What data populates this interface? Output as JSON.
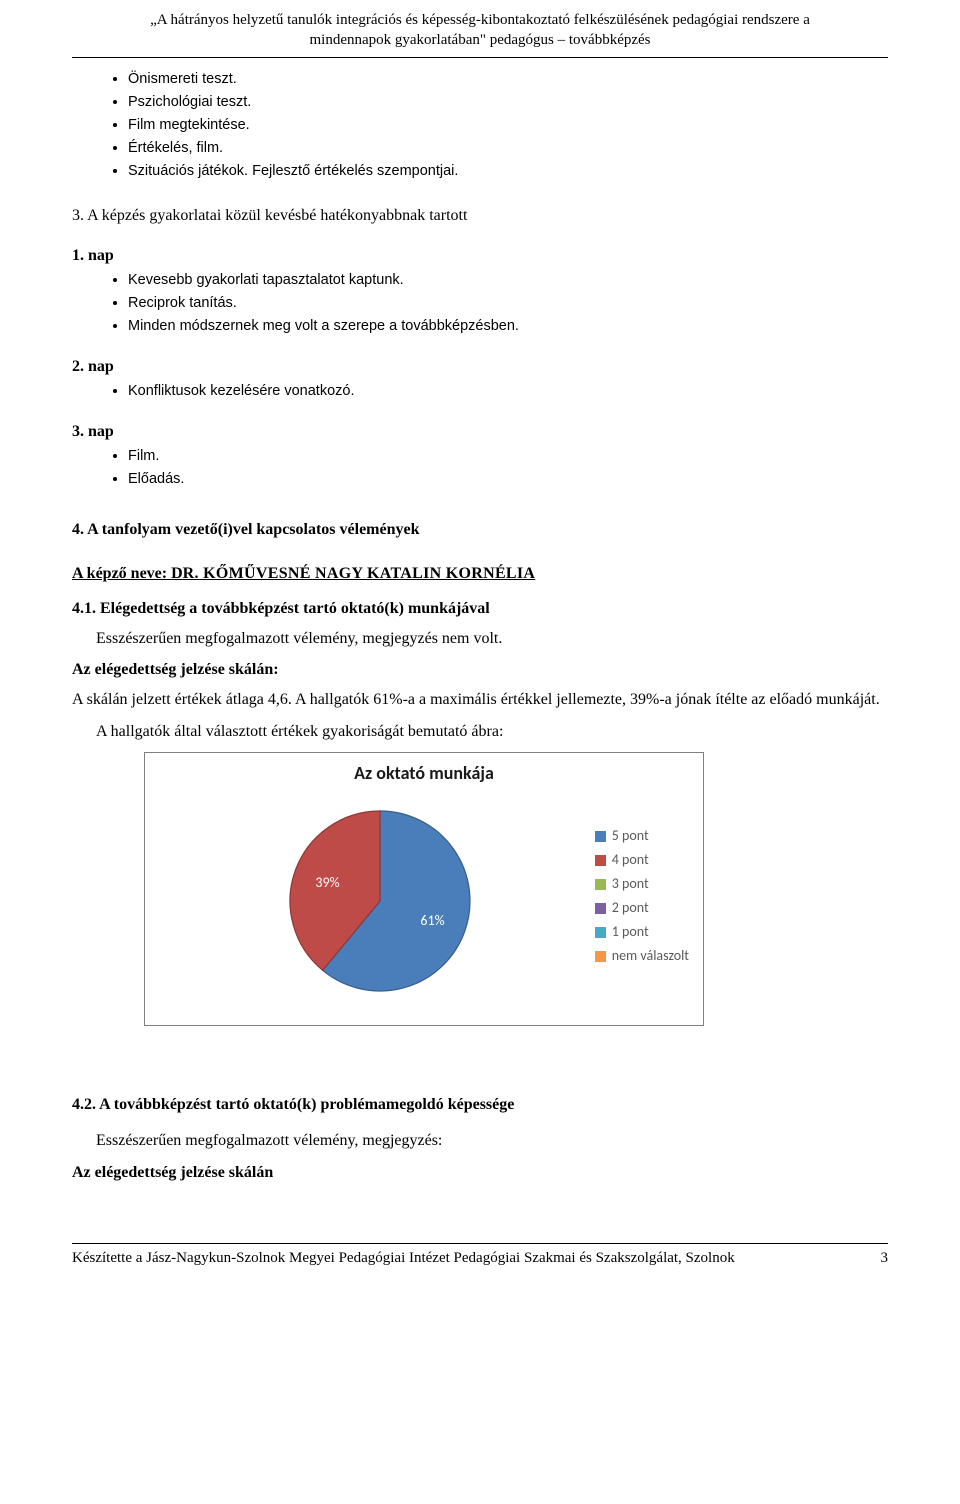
{
  "header": {
    "line1": "„A hátrányos helyzetű tanulók integrációs és képesség-kibontakoztató felkészülésének pedagógiai rendszere a",
    "line2": "mindennapok gyakorlatában\" pedagógus – továbbképzés"
  },
  "topList": [
    "Önismereti teszt.",
    "Pszichológiai teszt.",
    "Film megtekintése.",
    "Értékelés, film.",
    "Szituációs játékok. Fejlesztő értékelés szempontjai."
  ],
  "section3": {
    "title": "3. A képzés gyakorlatai közül kevésbé hatékonyabbnak tartott",
    "day1Label": "1. nap",
    "day1Items": [
      "Kevesebb gyakorlati tapasztalatot kaptunk.",
      "Reciprok tanítás.",
      "Minden módszernek meg volt a szerepe a továbbképzésben."
    ],
    "day2Label": "2. nap",
    "day2Items": [
      "Konfliktusok kezelésére vonatkozó."
    ],
    "day3Label": "3. nap",
    "day3Items": [
      "Film.",
      "Előadás."
    ]
  },
  "section4": {
    "title": "4. A tanfolyam vezető(i)vel kapcsolatos vélemények",
    "trainerLabel": "A képző neve: ",
    "trainerPrefix": "D",
    "trainerName": "R. KŐMŰVESNÉ NAGY KATALIN KORNÉLIA",
    "sub41Title": "4.1. Elégedettség a továbbképzést tartó oktató(k) munkájával",
    "sub41Para1": "Esszészerűen megfogalmazott vélemény, megjegyzés nem volt.",
    "sub41Para2": "Az elégedettség jelzése skálán:",
    "sub41Para3": "A skálán jelzett értékek átlaga 4,6.  A hallgatók 61%-a a maximális értékkel jellemezte, 39%-a jónak ítélte az előadó munkáját.",
    "chartCaption": "A hallgatók által választott értékek gyakoriságát bemutató ábra:"
  },
  "chart": {
    "type": "pie",
    "title": "Az oktató munkája",
    "background_color": "#ffffff",
    "border_color": "#808080",
    "slices": [
      {
        "label": "61%",
        "value": 61,
        "color": "#4a7ebb",
        "stroke": "#385d8a"
      },
      {
        "label": "39%",
        "value": 39,
        "color": "#be4b48",
        "stroke": "#8c3836"
      }
    ],
    "legend": [
      {
        "label": "5 pont",
        "color": "#4a7ebb"
      },
      {
        "label": "4 pont",
        "color": "#be4b48"
      },
      {
        "label": "3 pont",
        "color": "#98b954"
      },
      {
        "label": "2 pont",
        "color": "#7d60a0"
      },
      {
        "label": "1 pont",
        "color": "#46aac5"
      },
      {
        "label": "nem válaszolt",
        "color": "#f79646"
      }
    ],
    "label_color": "#ffffff",
    "title_fontsize": 18,
    "legend_fontsize": 14
  },
  "section42": {
    "title": "4.2. A továbbképzést tartó oktató(k) problémamegoldó képessége",
    "para1": "Esszészerűen megfogalmazott vélemény, megjegyzés:",
    "para2": "Az elégedettség jelzése skálán"
  },
  "footer": {
    "left": "Készítette a  Jász-Nagykun-Szolnok Megyei Pedagógiai Intézet Pedagógiai Szakmai és Szakszolgálat, Szolnok",
    "page": "3"
  }
}
